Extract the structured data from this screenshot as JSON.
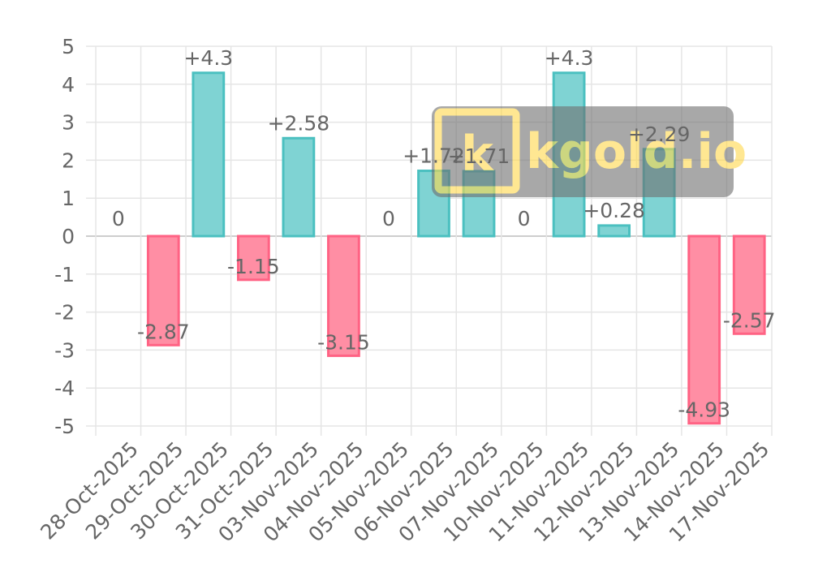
{
  "chart_data": {
    "type": "bar",
    "categories": [
      "28-Oct-2025",
      "29-Oct-2025",
      "30-Oct-2025",
      "31-Oct-2025",
      "03-Nov-2025",
      "04-Nov-2025",
      "05-Nov-2025",
      "06-Nov-2025",
      "07-Nov-2025",
      "10-Nov-2025",
      "11-Nov-2025",
      "12-Nov-2025",
      "13-Nov-2025",
      "14-Nov-2025",
      "17-Nov-2025"
    ],
    "values": [
      0,
      -2.87,
      4.3,
      -1.15,
      2.58,
      -3.15,
      0,
      1.72,
      1.71,
      0,
      4.3,
      0.28,
      2.29,
      -4.93,
      -2.57
    ],
    "data_labels": [
      "0",
      "-2.87",
      "+4.3",
      "-1.15",
      "+2.58",
      "-3.15",
      "0",
      "+1.72",
      "+1.71",
      "0",
      "+4.3",
      "+0.28",
      "+2.29",
      "-4.93",
      "-2.57"
    ],
    "y_ticks": [
      "5",
      "4",
      "3",
      "2",
      "1",
      "0",
      "-1",
      "-2",
      "-3",
      "-4",
      "-5"
    ],
    "ylim": [
      -5,
      5
    ],
    "grid": true,
    "colors": {
      "positive_fill": "#7fd3d3",
      "positive_stroke": "#4bc0c0",
      "negative_fill": "#ff8ea4",
      "negative_stroke": "#ff6384",
      "grid": "#e5e5e5",
      "text": "#666666"
    }
  },
  "watermark": {
    "text": "kgold.io",
    "logo_letter": "k"
  }
}
